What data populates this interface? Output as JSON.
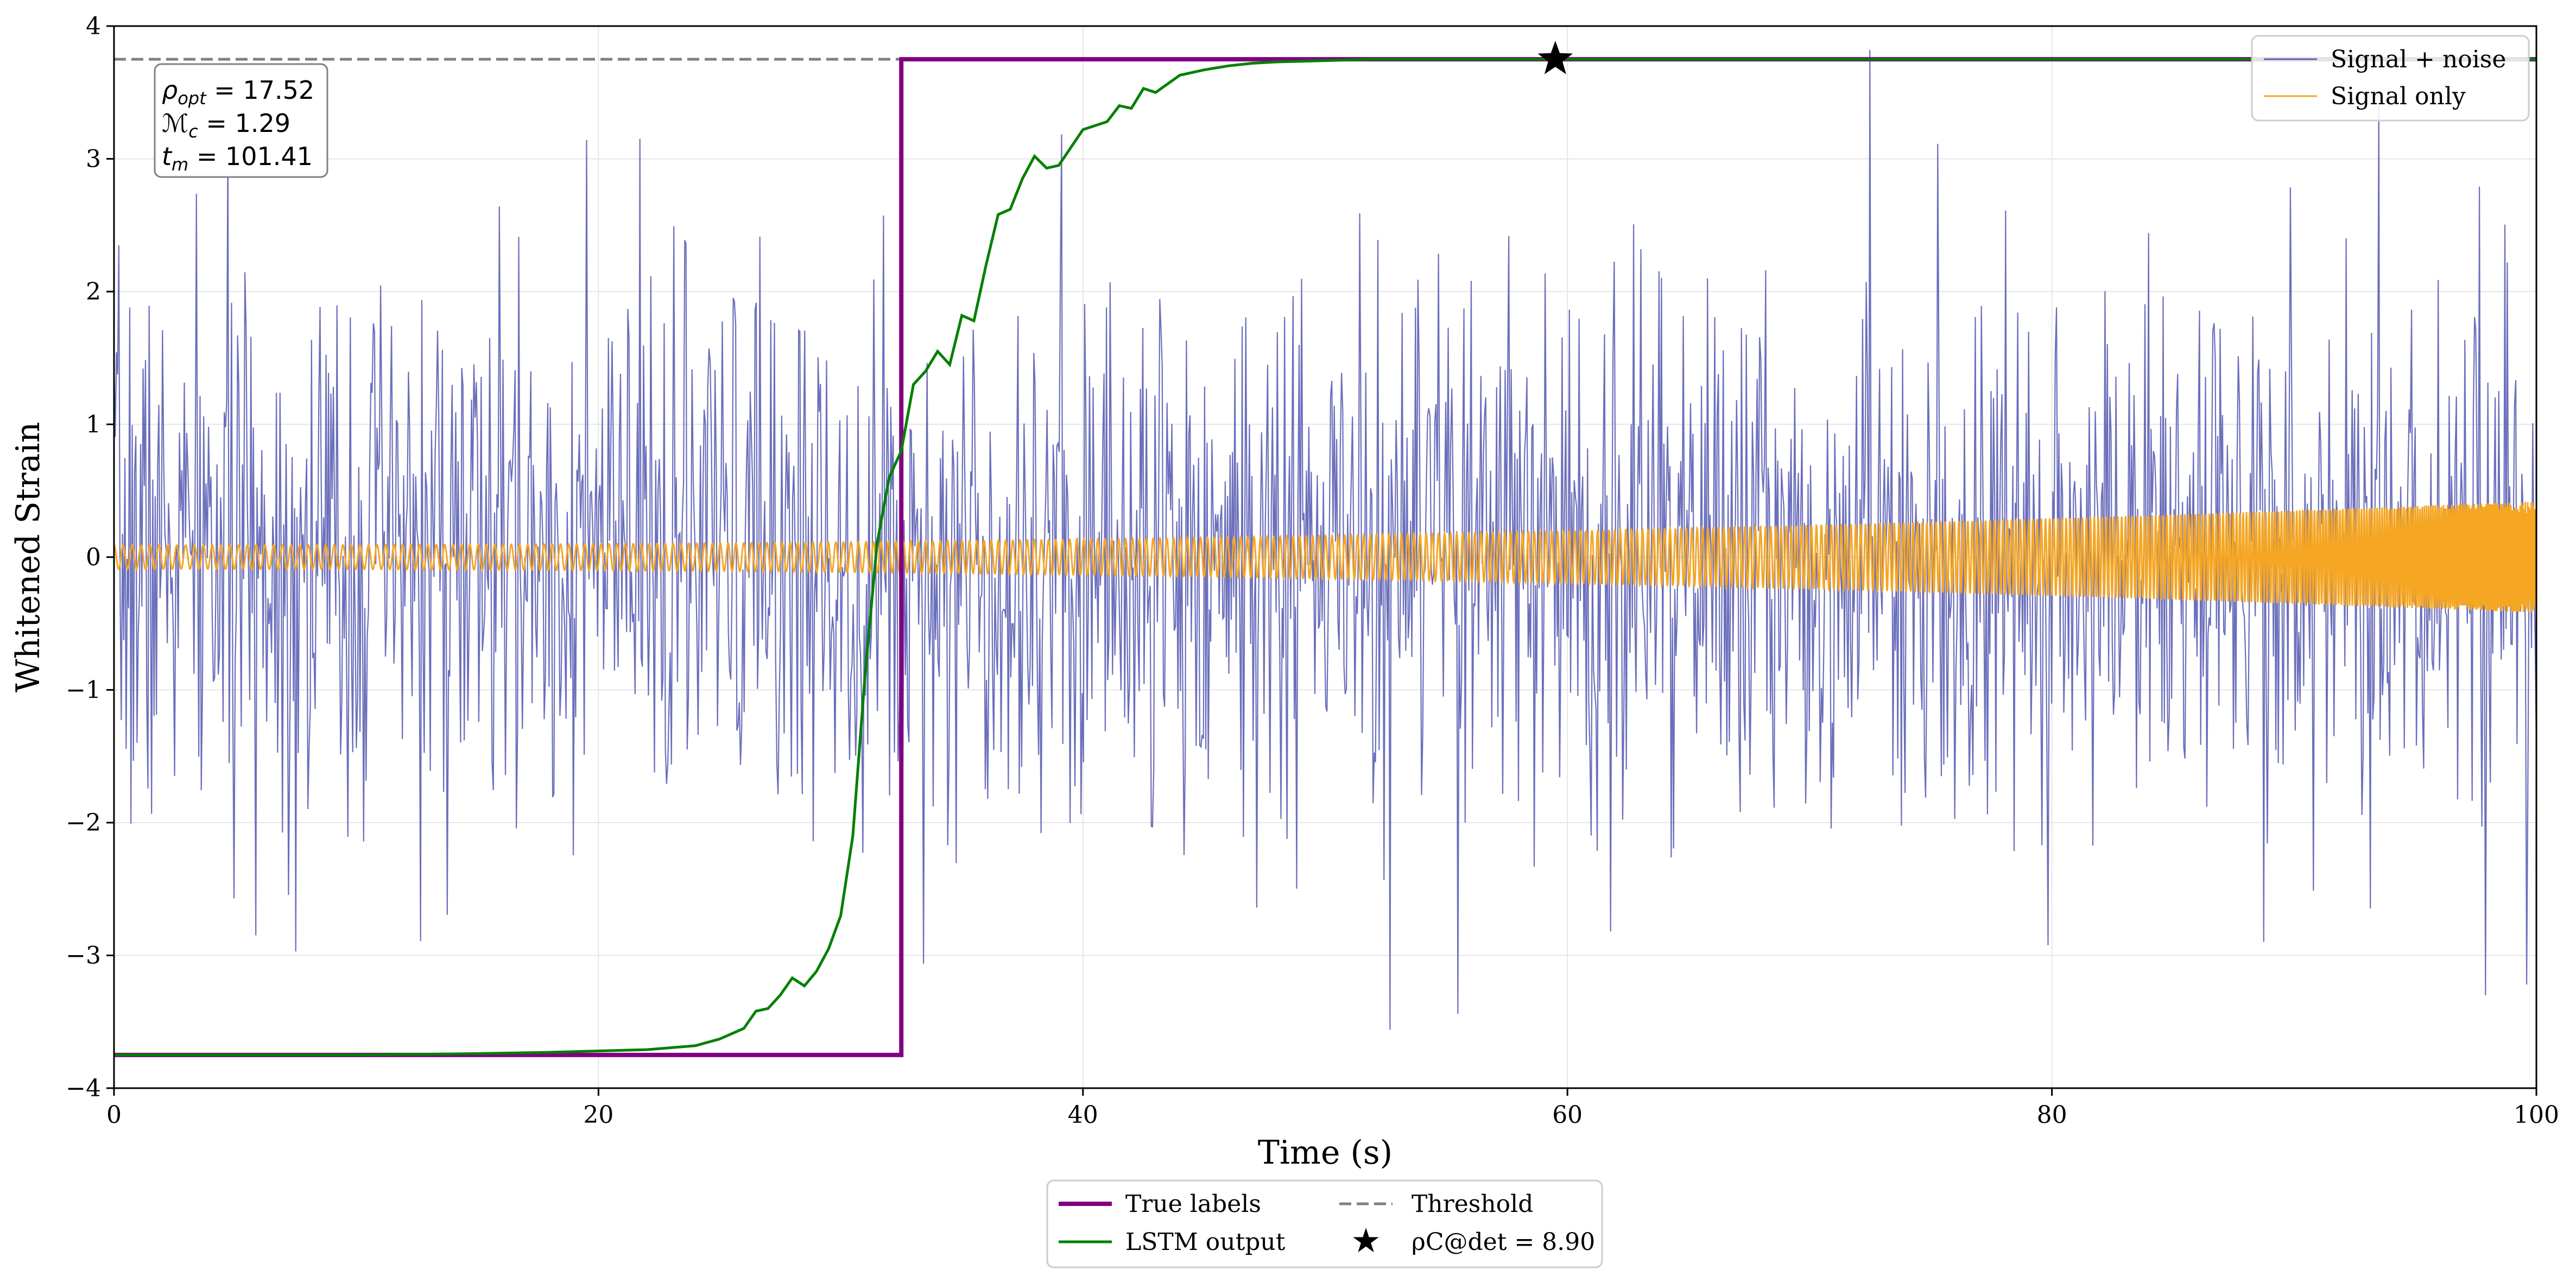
{
  "chart_data": {
    "type": "line",
    "title": "",
    "xlabel": "Time (s)",
    "ylabel": "Whitened Strain",
    "xlim": [
      0,
      100
    ],
    "ylim": [
      -4,
      4
    ],
    "xticks": [
      0,
      20,
      40,
      60,
      80,
      100
    ],
    "xtick_labels": [
      "0",
      "20",
      "40",
      "60",
      "80",
      "100"
    ],
    "yticks": [
      -4,
      -3,
      -2,
      -1,
      0,
      1,
      2,
      3,
      4
    ],
    "ytick_labels": [
      "−4",
      "−3",
      "−2",
      "−1",
      "0",
      "1",
      "2",
      "3",
      "4"
    ],
    "grid": true,
    "colors": {
      "signal_noise": "#5b5fb5",
      "signal_only": "#f5a623",
      "true_labels": "#800080",
      "lstm": "#008000",
      "threshold": "#808080",
      "marker": "#000000"
    },
    "series": [
      {
        "name": "Signal + noise",
        "kind": "noise",
        "sample_count": 2000,
        "std": 1.0,
        "seed": 7,
        "extremes": [
          [
            72.5,
            3.82
          ],
          [
            52.7,
            -3.56
          ],
          [
            55.5,
            -3.44
          ],
          [
            93.5,
            3.4
          ],
          [
            99.6,
            -3.22
          ],
          [
            61.8,
            -2.82
          ],
          [
            7.5,
            -2.97
          ]
        ]
      },
      {
        "name": "Signal only",
        "kind": "chirp",
        "amplitude_start": 0.09,
        "amplitude_end": 0.42,
        "merger_time": 101.41
      },
      {
        "name": "True labels",
        "kind": "step",
        "x": [
          0,
          32.5,
          32.5,
          100
        ],
        "y": [
          -3.75,
          -3.75,
          3.75,
          3.75
        ]
      },
      {
        "name": "LSTM output",
        "kind": "line",
        "x": [
          0,
          10,
          15,
          18,
          20,
          22,
          24,
          25,
          26,
          26.5,
          27,
          27.5,
          28,
          28.5,
          29,
          29.5,
          30,
          30.5,
          31,
          31.5,
          32,
          32.5,
          33,
          33.5,
          34,
          34.5,
          35,
          35.5,
          36,
          36.5,
          37,
          37.5,
          38,
          38.5,
          39,
          40,
          41,
          41.5,
          42,
          42.5,
          43,
          44,
          45,
          46,
          47,
          48,
          50,
          52,
          55,
          59.5,
          100
        ],
        "y": [
          -3.75,
          -3.75,
          -3.74,
          -3.73,
          -3.72,
          -3.71,
          -3.68,
          -3.63,
          -3.55,
          -3.42,
          -3.4,
          -3.3,
          -3.17,
          -3.23,
          -3.12,
          -2.95,
          -2.7,
          -2.1,
          -0.9,
          0.1,
          0.6,
          0.8,
          1.3,
          1.4,
          1.55,
          1.45,
          1.82,
          1.78,
          2.2,
          2.58,
          2.62,
          2.85,
          3.02,
          2.93,
          2.95,
          3.22,
          3.28,
          3.4,
          3.38,
          3.53,
          3.5,
          3.63,
          3.67,
          3.7,
          3.72,
          3.73,
          3.74,
          3.75,
          3.75,
          3.75,
          3.75
        ]
      },
      {
        "name": "Threshold",
        "kind": "hline",
        "y": 3.75
      },
      {
        "name": "ρC@det = 8.90",
        "kind": "marker",
        "x": 59.5,
        "y": 3.75
      }
    ],
    "annotation": {
      "rho_opt": "ρopt = 17.52",
      "chirp_mass": "ℳc = 1.29",
      "t_merger": "tm = 101.41"
    },
    "legend_upper": [
      "Signal + noise",
      "Signal only"
    ],
    "legend_upper_position": "top-right",
    "legend_lower": [
      "True labels",
      "Threshold",
      "LSTM output",
      "ρC@det = 8.90"
    ],
    "legend_lower_position": "below plot, center"
  }
}
